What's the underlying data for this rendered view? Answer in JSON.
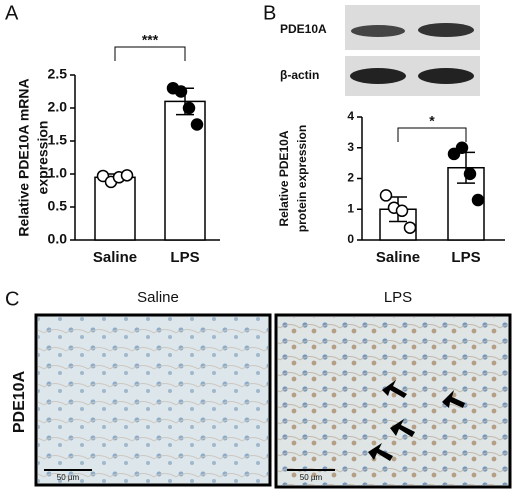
{
  "panels": {
    "a": "A",
    "b": "B",
    "c": "C"
  },
  "blot": {
    "rows": [
      "PDE10A",
      "β-actin"
    ]
  },
  "micrographs": {
    "row_label": "PDE10A",
    "titles": [
      "Saline",
      "LPS"
    ],
    "scale_bar": "50 µm"
  },
  "chart_data": [
    {
      "type": "bar",
      "ylabel": [
        "Relative PDE10A mRNA",
        "expression"
      ],
      "categories": [
        "Saline",
        "LPS"
      ],
      "values": [
        0.95,
        2.1
      ],
      "errors": [
        0.05,
        0.2
      ],
      "points": [
        [
          0.97,
          0.88,
          0.95,
          0.98
        ],
        [
          2.3,
          2.25,
          2.0,
          1.75
        ]
      ],
      "significance": "***",
      "color": "#ffffff",
      "ylim": [
        0,
        2.5
      ],
      "yticks": [
        {
          "value": 0,
          "label": "0.0"
        },
        0.5,
        {
          "value": 1,
          "label": "1.0"
        },
        1.5,
        {
          "value": 2,
          "label": "2.0"
        },
        2.5
      ]
    },
    {
      "type": "bar",
      "ylabel": [
        "Relative PDE10A",
        "protein expression"
      ],
      "categories": [
        "Saline",
        "LPS"
      ],
      "values": [
        1.0,
        2.35
      ],
      "errors": [
        0.4,
        0.5
      ],
      "points": [
        [
          1.45,
          1.05,
          0.95,
          0.4
        ],
        [
          2.8,
          3.0,
          2.15,
          1.3
        ]
      ],
      "significance": "*",
      "color": "#ffffff",
      "ylim": [
        0,
        4
      ],
      "yticks": [
        0,
        1,
        2,
        3,
        4
      ]
    }
  ]
}
